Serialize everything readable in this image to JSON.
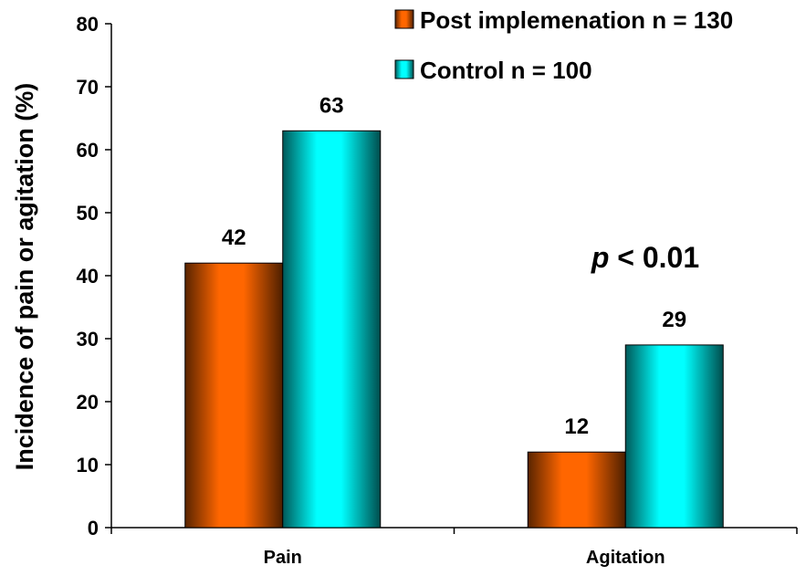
{
  "chart_data": {
    "type": "bar",
    "categories": [
      "Pain",
      "Agitation"
    ],
    "series": [
      {
        "name": "Post implemenation n = 130",
        "values": [
          42,
          12
        ],
        "color": "#ff6600"
      },
      {
        "name": "Control n = 100",
        "values": [
          63,
          29
        ],
        "color": "#00ffff"
      }
    ],
    "data_labels": [
      [
        "42",
        "12"
      ],
      [
        "63",
        "29"
      ]
    ],
    "ylabel": "Incidence of pain or agitation (%)",
    "xlabel": "",
    "ylim": [
      0,
      80
    ],
    "yticks": [
      0,
      10,
      20,
      30,
      40,
      50,
      60,
      70,
      80
    ],
    "grid": false,
    "legend_position": "top-right",
    "annotation": {
      "italic": "p",
      "text": " < 0.01"
    }
  }
}
